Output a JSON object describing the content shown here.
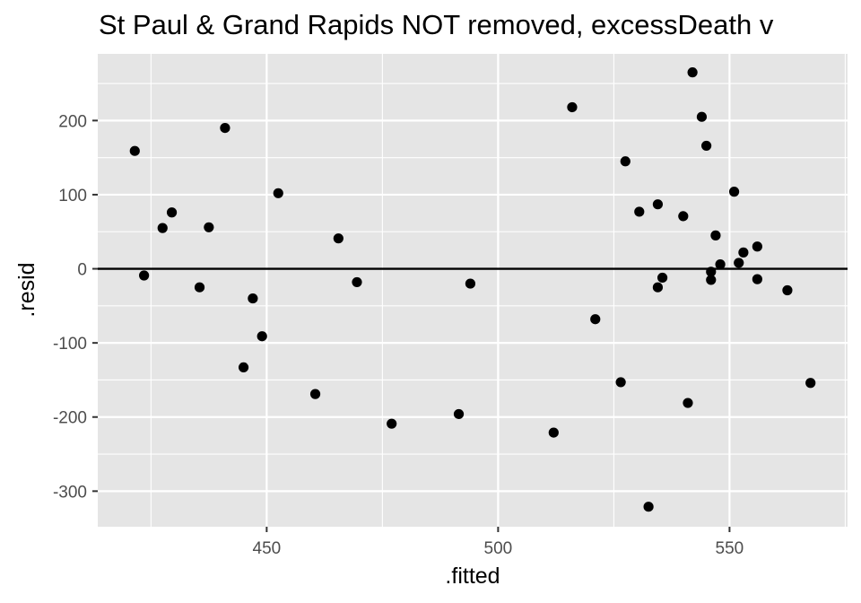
{
  "chart_data": {
    "type": "scatter",
    "title": "St Paul & Grand Rapids NOT removed, excessDeath v",
    "xlabel": ".fitted",
    "ylabel": ".resid",
    "xlim": [
      413.5,
      575.5
    ],
    "ylim": [
      -348,
      290
    ],
    "x_ticks": [
      450,
      500,
      550
    ],
    "x_tick_labels": [
      "450",
      "500",
      "550"
    ],
    "y_ticks": [
      -300,
      -200,
      -100,
      0,
      100,
      200
    ],
    "y_tick_labels": [
      "-300",
      "-200",
      "-100",
      "0",
      "100",
      "200"
    ],
    "hline": 0,
    "grid": true,
    "legend": "none",
    "colors": {
      "panel": "#e5e5e5",
      "grid": "#ffffff",
      "points": "#000000",
      "tick_text": "#4d4d4d"
    },
    "points": [
      {
        "x": 421.5,
        "y": 159
      },
      {
        "x": 423.5,
        "y": -9
      },
      {
        "x": 427.5,
        "y": 55
      },
      {
        "x": 429.5,
        "y": 76
      },
      {
        "x": 435.5,
        "y": -25
      },
      {
        "x": 437.5,
        "y": 56
      },
      {
        "x": 441.0,
        "y": 190
      },
      {
        "x": 445.0,
        "y": -133
      },
      {
        "x": 447.0,
        "y": -40
      },
      {
        "x": 449.0,
        "y": -91
      },
      {
        "x": 452.5,
        "y": 102
      },
      {
        "x": 460.5,
        "y": -169
      },
      {
        "x": 465.5,
        "y": 41
      },
      {
        "x": 469.5,
        "y": -18
      },
      {
        "x": 477.0,
        "y": -209
      },
      {
        "x": 491.5,
        "y": -196
      },
      {
        "x": 494.0,
        "y": -20
      },
      {
        "x": 512.0,
        "y": -221
      },
      {
        "x": 516.0,
        "y": 218
      },
      {
        "x": 521.0,
        "y": -68
      },
      {
        "x": 526.5,
        "y": -153
      },
      {
        "x": 527.5,
        "y": 145
      },
      {
        "x": 530.5,
        "y": 77
      },
      {
        "x": 532.5,
        "y": -321
      },
      {
        "x": 534.5,
        "y": 87
      },
      {
        "x": 534.5,
        "y": -25
      },
      {
        "x": 535.5,
        "y": -12
      },
      {
        "x": 540.0,
        "y": 71
      },
      {
        "x": 541.0,
        "y": -181
      },
      {
        "x": 542.0,
        "y": 265
      },
      {
        "x": 544.0,
        "y": 205
      },
      {
        "x": 545.0,
        "y": 166
      },
      {
        "x": 546.0,
        "y": -4
      },
      {
        "x": 546.0,
        "y": -15
      },
      {
        "x": 547.0,
        "y": 45
      },
      {
        "x": 548.0,
        "y": 6
      },
      {
        "x": 551.0,
        "y": 104
      },
      {
        "x": 552.0,
        "y": 8
      },
      {
        "x": 553.0,
        "y": 22
      },
      {
        "x": 556.0,
        "y": 30
      },
      {
        "x": 556.0,
        "y": -14
      },
      {
        "x": 562.5,
        "y": -29
      },
      {
        "x": 567.5,
        "y": -154
      }
    ]
  }
}
